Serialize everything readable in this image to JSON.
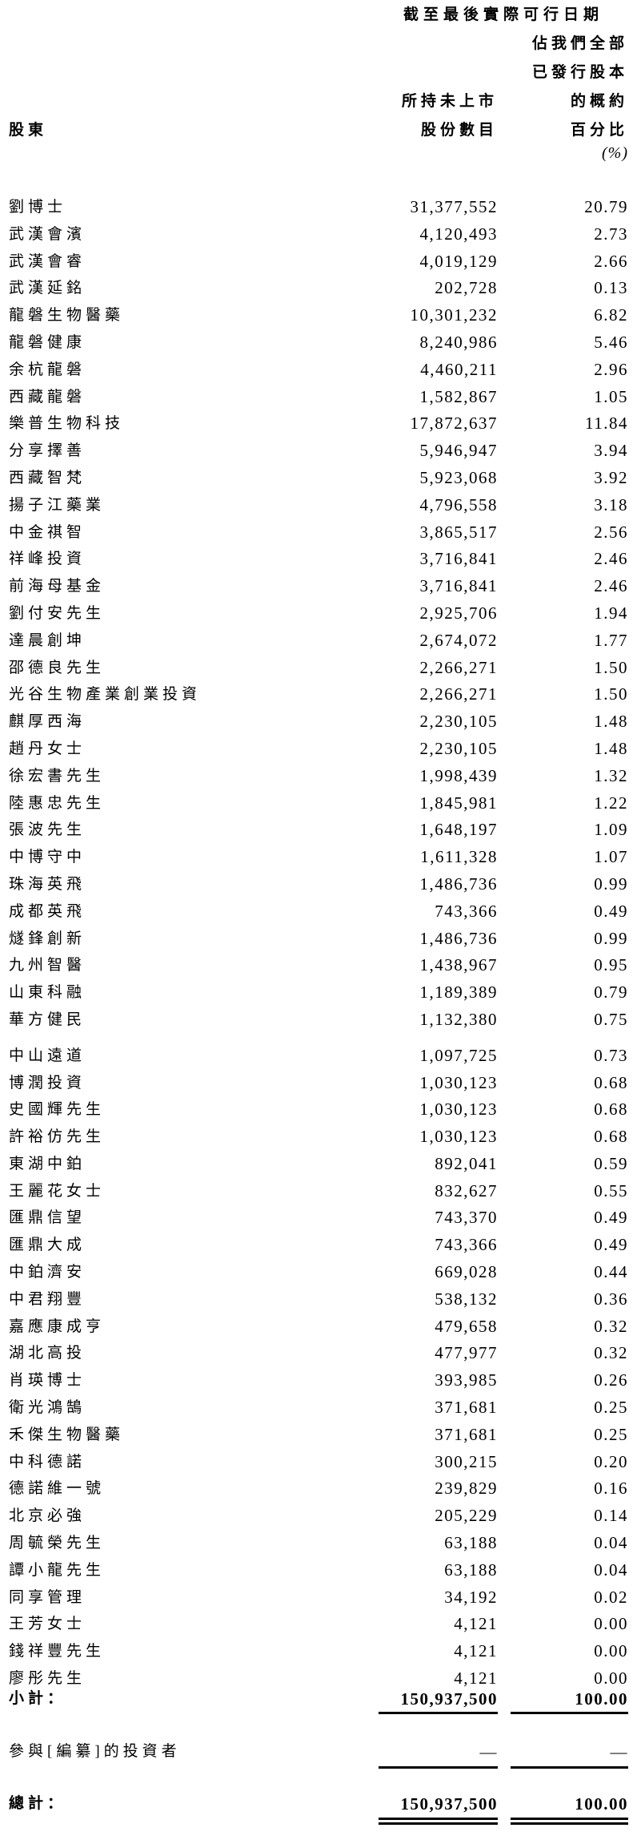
{
  "header": {
    "period_title": "截至最後實際可行日期",
    "shareholder_label": "股東",
    "shares_label_line1": "所持未上市",
    "shares_label_line2": "股份數目",
    "pct_label_line1": "佔我們全部",
    "pct_label_line2": "已發行股本",
    "pct_label_line3": "的概約",
    "pct_label_line4": "百分比",
    "pct_unit": "(%)"
  },
  "table": {
    "rows_top": [
      {
        "name": "劉博士",
        "shares": "31,377,552",
        "pct": "20.79"
      },
      {
        "name": "武漢會濱",
        "shares": "4,120,493",
        "pct": "2.73"
      },
      {
        "name": "武漢會睿",
        "shares": "4,019,129",
        "pct": "2.66"
      },
      {
        "name": "武漢延銘",
        "shares": "202,728",
        "pct": "0.13"
      },
      {
        "name": "龍磐生物醫藥",
        "shares": "10,301,232",
        "pct": "6.82"
      },
      {
        "name": "龍磐健康",
        "shares": "8,240,986",
        "pct": "5.46"
      },
      {
        "name": "余杭龍磐",
        "shares": "4,460,211",
        "pct": "2.96"
      },
      {
        "name": "西藏龍磐",
        "shares": "1,582,867",
        "pct": "1.05"
      },
      {
        "name": "樂普生物科技",
        "shares": "17,872,637",
        "pct": "11.84"
      },
      {
        "name": "分享擇善",
        "shares": "5,946,947",
        "pct": "3.94"
      },
      {
        "name": "西藏智梵",
        "shares": "5,923,068",
        "pct": "3.92"
      },
      {
        "name": "揚子江藥業",
        "shares": "4,796,558",
        "pct": "3.18"
      },
      {
        "name": "中金祺智",
        "shares": "3,865,517",
        "pct": "2.56"
      },
      {
        "name": "祥峰投資",
        "shares": "3,716,841",
        "pct": "2.46"
      },
      {
        "name": "前海母基金",
        "shares": "3,716,841",
        "pct": "2.46"
      },
      {
        "name": "劉付安先生",
        "shares": "2,925,706",
        "pct": "1.94"
      },
      {
        "name": "達晨創坤",
        "shares": "2,674,072",
        "pct": "1.77"
      },
      {
        "name": "邵德良先生",
        "shares": "2,266,271",
        "pct": "1.50"
      },
      {
        "name": "光谷生物產業創業投資",
        "shares": "2,266,271",
        "pct": "1.50"
      },
      {
        "name": "麒厚西海",
        "shares": "2,230,105",
        "pct": "1.48"
      },
      {
        "name": "趙丹女士",
        "shares": "2,230,105",
        "pct": "1.48"
      },
      {
        "name": "徐宏書先生",
        "shares": "1,998,439",
        "pct": "1.32"
      },
      {
        "name": "陸惠忠先生",
        "shares": "1,845,981",
        "pct": "1.22"
      },
      {
        "name": "張波先生",
        "shares": "1,648,197",
        "pct": "1.09"
      },
      {
        "name": "中博守中",
        "shares": "1,611,328",
        "pct": "1.07"
      },
      {
        "name": "珠海英飛",
        "shares": "1,486,736",
        "pct": "0.99"
      },
      {
        "name": "成都英飛",
        "shares": "743,366",
        "pct": "0.49"
      },
      {
        "name": "燧鋒創新",
        "shares": "1,486,736",
        "pct": "0.99"
      },
      {
        "name": "九州智醫",
        "shares": "1,438,967",
        "pct": "0.95"
      },
      {
        "name": "山東科融",
        "shares": "1,189,389",
        "pct": "0.79"
      },
      {
        "name": "華方健民",
        "shares": "1,132,380",
        "pct": "0.75"
      }
    ],
    "rows_bottom": [
      {
        "name": "中山遠道",
        "shares": "1,097,725",
        "pct": "0.73"
      },
      {
        "name": "博潤投資",
        "shares": "1,030,123",
        "pct": "0.68"
      },
      {
        "name": "史國輝先生",
        "shares": "1,030,123",
        "pct": "0.68"
      },
      {
        "name": "許裕仿先生",
        "shares": "1,030,123",
        "pct": "0.68"
      },
      {
        "name": "東湖中鉑",
        "shares": "892,041",
        "pct": "0.59"
      },
      {
        "name": "王麗花女士",
        "shares": "832,627",
        "pct": "0.55"
      },
      {
        "name": "匯鼎信望",
        "shares": "743,370",
        "pct": "0.49"
      },
      {
        "name": "匯鼎大成",
        "shares": "743,366",
        "pct": "0.49"
      },
      {
        "name": "中鉑濟安",
        "shares": "669,028",
        "pct": "0.44"
      },
      {
        "name": "中君翔豐",
        "shares": "538,132",
        "pct": "0.36"
      },
      {
        "name": "嘉應康成亨",
        "shares": "479,658",
        "pct": "0.32"
      },
      {
        "name": "湖北高投",
        "shares": "477,977",
        "pct": "0.32"
      },
      {
        "name": "肖瑛博士",
        "shares": "393,985",
        "pct": "0.26"
      },
      {
        "name": "衛光鴻鵠",
        "shares": "371,681",
        "pct": "0.25"
      },
      {
        "name": "禾傑生物醫藥",
        "shares": "371,681",
        "pct": "0.25"
      },
      {
        "name": "中科德諾",
        "shares": "300,215",
        "pct": "0.20"
      },
      {
        "name": "德諾維一號",
        "shares": "239,829",
        "pct": "0.16"
      },
      {
        "name": "北京必強",
        "shares": "205,229",
        "pct": "0.14"
      },
      {
        "name": "周毓榮先生",
        "shares": "63,188",
        "pct": "0.04"
      },
      {
        "name": "譚小龍先生",
        "shares": "63,188",
        "pct": "0.04"
      },
      {
        "name": "同享管理",
        "shares": "34,192",
        "pct": "0.02"
      },
      {
        "name": "王芳女士",
        "shares": "4,121",
        "pct": "0.00"
      },
      {
        "name": "錢祥豐先生",
        "shares": "4,121",
        "pct": "0.00"
      },
      {
        "name": "廖彤先生",
        "shares": "4,121",
        "pct": "0.00"
      }
    ],
    "footer": {
      "subtotal_label": "小計：",
      "subtotal_shares": "150,937,500",
      "subtotal_pct": "100.00",
      "investors_label": "參與[編纂]的投資者",
      "investors_shares": "—",
      "investors_pct": "—",
      "total_label": "總計：",
      "total_shares": "150,937,500",
      "total_pct": "100.00"
    }
  }
}
